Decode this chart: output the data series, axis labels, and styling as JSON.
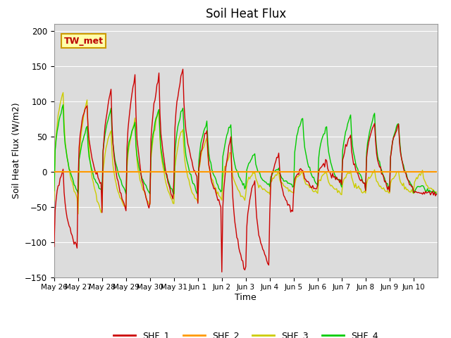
{
  "title": "Soil Heat Flux",
  "xlabel": "Time",
  "ylabel": "Soil Heat Flux (W/m2)",
  "ylim": [
    -150,
    210
  ],
  "yticks": [
    -150,
    -100,
    -50,
    0,
    50,
    100,
    150,
    200
  ],
  "bg_color": "#dcdcdc",
  "fig_bg": "#ffffff",
  "label_box": "TW_met",
  "series_colors": {
    "SHF_1": "#cc0000",
    "SHF_2": "#ff9900",
    "SHF_3": "#cccc00",
    "SHF_4": "#00cc00"
  },
  "xtick_labels": [
    "May 26",
    "May 27",
    "May 28",
    "May 29",
    "May 30",
    "May 31",
    "Jun 1",
    "Jun 2",
    "Jun 3",
    "Jun 4",
    "Jun 5",
    "Jun 6",
    "Jun 7",
    "Jun 8",
    "Jun 9",
    "Jun 10"
  ],
  "n_days": 16
}
